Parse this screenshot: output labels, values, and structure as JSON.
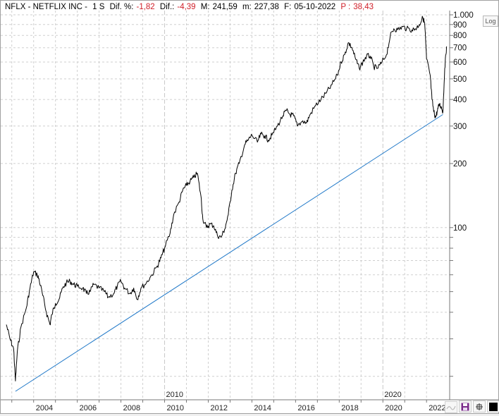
{
  "header": {
    "symbol": "NFLX - NETFLIX INC -",
    "timeframe": "1 S",
    "dif_pct_label": "Dif. %:",
    "dif_pct_value": "-1,82",
    "dif_label": "Dif.:",
    "dif_value": "-4,39",
    "max_label": "M:",
    "max_value": "241,59",
    "min_label": "m:",
    "min_value": "227,38",
    "date_label": "F:",
    "date_value": "05-10-2022",
    "p_label": "P :",
    "p_value": "38,43"
  },
  "log_button_label": "Log",
  "colors": {
    "price_line": "#000000",
    "trend_line": "#1f78c8",
    "negative_value": "#d0202a",
    "grid": "#cfcfcf"
  },
  "chart_data": {
    "type": "line",
    "yscale": "log",
    "ylim": [
      17,
      1000
    ],
    "xlim": [
      "2002-10",
      "2022-11"
    ],
    "x_tick_labels": [
      "2004",
      "2006",
      "2008",
      "2010",
      "2012",
      "2014",
      "2016",
      "2018",
      "2020",
      "2022"
    ],
    "x_major_labels": [
      "2010",
      "2020"
    ],
    "y_tick_labels": [
      "1.000",
      "900",
      "800",
      "700",
      "600",
      "500",
      "400",
      "300",
      "200",
      "100"
    ],
    "series": [
      {
        "points": [
          [
            "2002-10",
            35
          ],
          [
            "2002-12",
            30
          ],
          [
            "2003-02",
            27
          ],
          [
            "2003-03",
            19
          ],
          [
            "2003-04",
            26
          ],
          [
            "2003-06",
            34
          ],
          [
            "2003-09",
            42
          ],
          [
            "2003-11",
            52
          ],
          [
            "2004-01",
            62
          ],
          [
            "2004-03",
            60
          ],
          [
            "2004-04",
            57
          ],
          [
            "2004-06",
            48
          ],
          [
            "2004-08",
            40
          ],
          [
            "2004-10",
            35
          ],
          [
            "2004-11",
            39
          ],
          [
            "2005-01",
            44
          ],
          [
            "2005-03",
            46
          ],
          [
            "2005-05",
            52
          ],
          [
            "2005-07",
            55
          ],
          [
            "2005-09",
            56
          ],
          [
            "2005-11",
            54
          ],
          [
            "2006-01",
            53
          ],
          [
            "2006-04",
            52
          ],
          [
            "2006-06",
            49
          ],
          [
            "2006-08",
            50
          ],
          [
            "2006-10",
            54
          ],
          [
            "2007-01",
            52
          ],
          [
            "2007-04",
            50
          ],
          [
            "2007-06",
            47
          ],
          [
            "2007-09",
            49
          ],
          [
            "2007-11",
            53
          ],
          [
            "2008-01",
            56
          ],
          [
            "2008-03",
            52
          ],
          [
            "2008-06",
            49
          ],
          [
            "2008-08",
            52
          ],
          [
            "2008-10",
            46
          ],
          [
            "2008-12",
            52
          ],
          [
            "2009-03",
            55
          ],
          [
            "2009-06",
            60
          ],
          [
            "2009-09",
            66
          ],
          [
            "2009-11",
            72
          ],
          [
            "2010-01",
            80
          ],
          [
            "2010-04",
            94
          ],
          [
            "2010-06",
            115
          ],
          [
            "2010-09",
            132
          ],
          [
            "2010-11",
            150
          ],
          [
            "2011-01",
            158
          ],
          [
            "2011-03",
            165
          ],
          [
            "2011-05",
            172
          ],
          [
            "2011-07",
            180
          ],
          [
            "2011-09",
            140
          ],
          [
            "2011-10",
            110
          ],
          [
            "2011-12",
            100
          ],
          [
            "2012-02",
            104
          ],
          [
            "2012-04",
            102
          ],
          [
            "2012-06",
            92
          ],
          [
            "2012-08",
            90
          ],
          [
            "2012-10",
            98
          ],
          [
            "2012-12",
            115
          ],
          [
            "2013-02",
            150
          ],
          [
            "2013-04",
            180
          ],
          [
            "2013-06",
            200
          ],
          [
            "2013-09",
            245
          ],
          [
            "2013-11",
            258
          ],
          [
            "2014-01",
            272
          ],
          [
            "2014-04",
            252
          ],
          [
            "2014-06",
            275
          ],
          [
            "2014-08",
            270
          ],
          [
            "2014-10",
            258
          ],
          [
            "2014-12",
            272
          ],
          [
            "2015-03",
            300
          ],
          [
            "2015-06",
            335
          ],
          [
            "2015-08",
            355
          ],
          [
            "2015-10",
            340
          ],
          [
            "2015-12",
            335
          ],
          [
            "2016-02",
            300
          ],
          [
            "2016-05",
            318
          ],
          [
            "2016-07",
            310
          ],
          [
            "2016-09",
            340
          ],
          [
            "2016-12",
            375
          ],
          [
            "2017-03",
            400
          ],
          [
            "2017-06",
            430
          ],
          [
            "2017-09",
            470
          ],
          [
            "2017-12",
            520
          ],
          [
            "2018-02",
            600
          ],
          [
            "2018-04",
            650
          ],
          [
            "2018-06",
            740
          ],
          [
            "2018-08",
            700
          ],
          [
            "2018-10",
            620
          ],
          [
            "2018-12",
            560
          ],
          [
            "2019-02",
            600
          ],
          [
            "2019-04",
            640
          ],
          [
            "2019-06",
            640
          ],
          [
            "2019-08",
            570
          ],
          [
            "2019-10",
            560
          ],
          [
            "2019-12",
            590
          ],
          [
            "2020-03",
            650
          ],
          [
            "2020-05",
            790
          ],
          [
            "2020-07",
            860
          ],
          [
            "2020-09",
            850
          ],
          [
            "2020-12",
            880
          ],
          [
            "2021-02",
            860
          ],
          [
            "2021-05",
            850
          ],
          [
            "2021-07",
            860
          ],
          [
            "2021-09",
            900
          ],
          [
            "2021-11",
            970
          ],
          [
            "2021-12",
            910
          ],
          [
            "2022-01",
            620
          ],
          [
            "2022-03",
            520
          ],
          [
            "2022-04",
            400
          ],
          [
            "2022-05",
            350
          ],
          [
            "2022-06",
            330
          ],
          [
            "2022-07",
            355
          ],
          [
            "2022-08",
            380
          ],
          [
            "2022-09",
            370
          ],
          [
            "2022-10",
            350
          ],
          [
            "2022-11",
            560
          ],
          [
            "2022-12",
            710
          ]
        ]
      }
    ],
    "trendline": [
      [
        "2003-03",
        17
      ],
      [
        "2022-10",
        340
      ]
    ]
  }
}
